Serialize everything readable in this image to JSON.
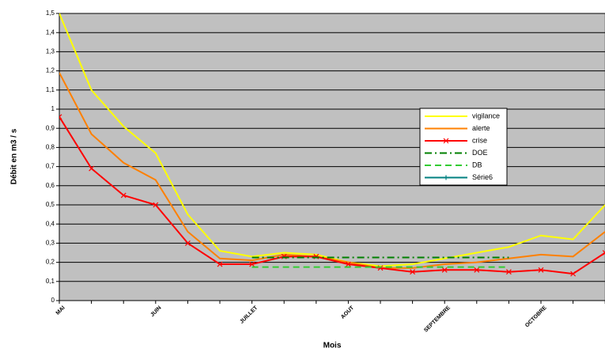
{
  "chart_data": {
    "type": "line",
    "ylabel": "Débit en m3 / s",
    "xlabel": "Mois",
    "categories": [
      "MAI",
      null,
      null,
      "JUIN",
      null,
      null,
      "JUILLET",
      null,
      null,
      "AOUT",
      null,
      null,
      "SEPTEMBRE",
      null,
      null,
      "OCTOBRE",
      null,
      null
    ],
    "series": [
      {
        "name": "vigilance",
        "color": "#ffff00",
        "style": "solid",
        "values": [
          1.5,
          1.1,
          0.91,
          0.77,
          0.45,
          0.26,
          0.23,
          0.25,
          0.24,
          0.2,
          0.18,
          0.19,
          0.22,
          0.25,
          0.28,
          0.34,
          0.32,
          0.5
        ]
      },
      {
        "name": "alerte",
        "color": "#ff8000",
        "style": "solid",
        "values": [
          1.19,
          0.87,
          0.72,
          0.63,
          0.36,
          0.22,
          0.21,
          0.24,
          0.23,
          0.2,
          0.17,
          0.17,
          0.19,
          0.2,
          0.22,
          0.24,
          0.23,
          0.36
        ]
      },
      {
        "name": "crise",
        "color": "#ff0000",
        "style": "solid",
        "marker": "x",
        "values": [
          0.96,
          0.69,
          0.55,
          0.5,
          0.3,
          0.19,
          0.19,
          0.23,
          0.23,
          0.19,
          0.17,
          0.15,
          0.16,
          0.16,
          0.15,
          0.16,
          0.14,
          0.25
        ]
      },
      {
        "name": "DOE",
        "color": "#008000",
        "style": "dashdot",
        "values": [
          null,
          null,
          null,
          null,
          null,
          null,
          0.225,
          0.225,
          0.225,
          0.225,
          0.225,
          0.225,
          0.225,
          0.225,
          0.225,
          null,
          null,
          null
        ]
      },
      {
        "name": "DB",
        "color": "#33cc33",
        "style": "dashed",
        "values": [
          null,
          null,
          null,
          null,
          null,
          null,
          0.175,
          0.175,
          0.175,
          0.175,
          0.175,
          0.175,
          0.175,
          0.175,
          0.175,
          null,
          null,
          null
        ]
      },
      {
        "name": "Série6",
        "color": "#008080",
        "style": "solid",
        "marker": "plus",
        "values": [
          null,
          null,
          null,
          null,
          null,
          null,
          null,
          null,
          null,
          null,
          null,
          null,
          null,
          null,
          null,
          null,
          null,
          null
        ]
      }
    ],
    "ylim": [
      0,
      1.5
    ],
    "yticks": [
      0,
      {
        "value": 0.1,
        "label": "0,1"
      },
      {
        "value": 0.2,
        "label": "0,2"
      },
      {
        "value": 0.3,
        "label": "0,3"
      },
      {
        "value": 0.4,
        "label": "0,4"
      },
      {
        "value": 0.5,
        "label": "0,5"
      },
      {
        "value": 0.6,
        "label": "0,6"
      },
      {
        "value": 0.7,
        "label": "0,7"
      },
      {
        "value": 0.8,
        "label": "0,8"
      },
      {
        "value": 0.9,
        "label": "0,9"
      },
      1,
      {
        "value": 1.1,
        "label": "1,1"
      },
      {
        "value": 1.2,
        "label": "1,2"
      },
      {
        "value": 1.3,
        "label": "1,3"
      },
      {
        "value": 1.4,
        "label": "1,4"
      },
      {
        "value": 1.5,
        "label": "1,5"
      }
    ],
    "grid": true,
    "plot_background": "#c0c0c0"
  }
}
